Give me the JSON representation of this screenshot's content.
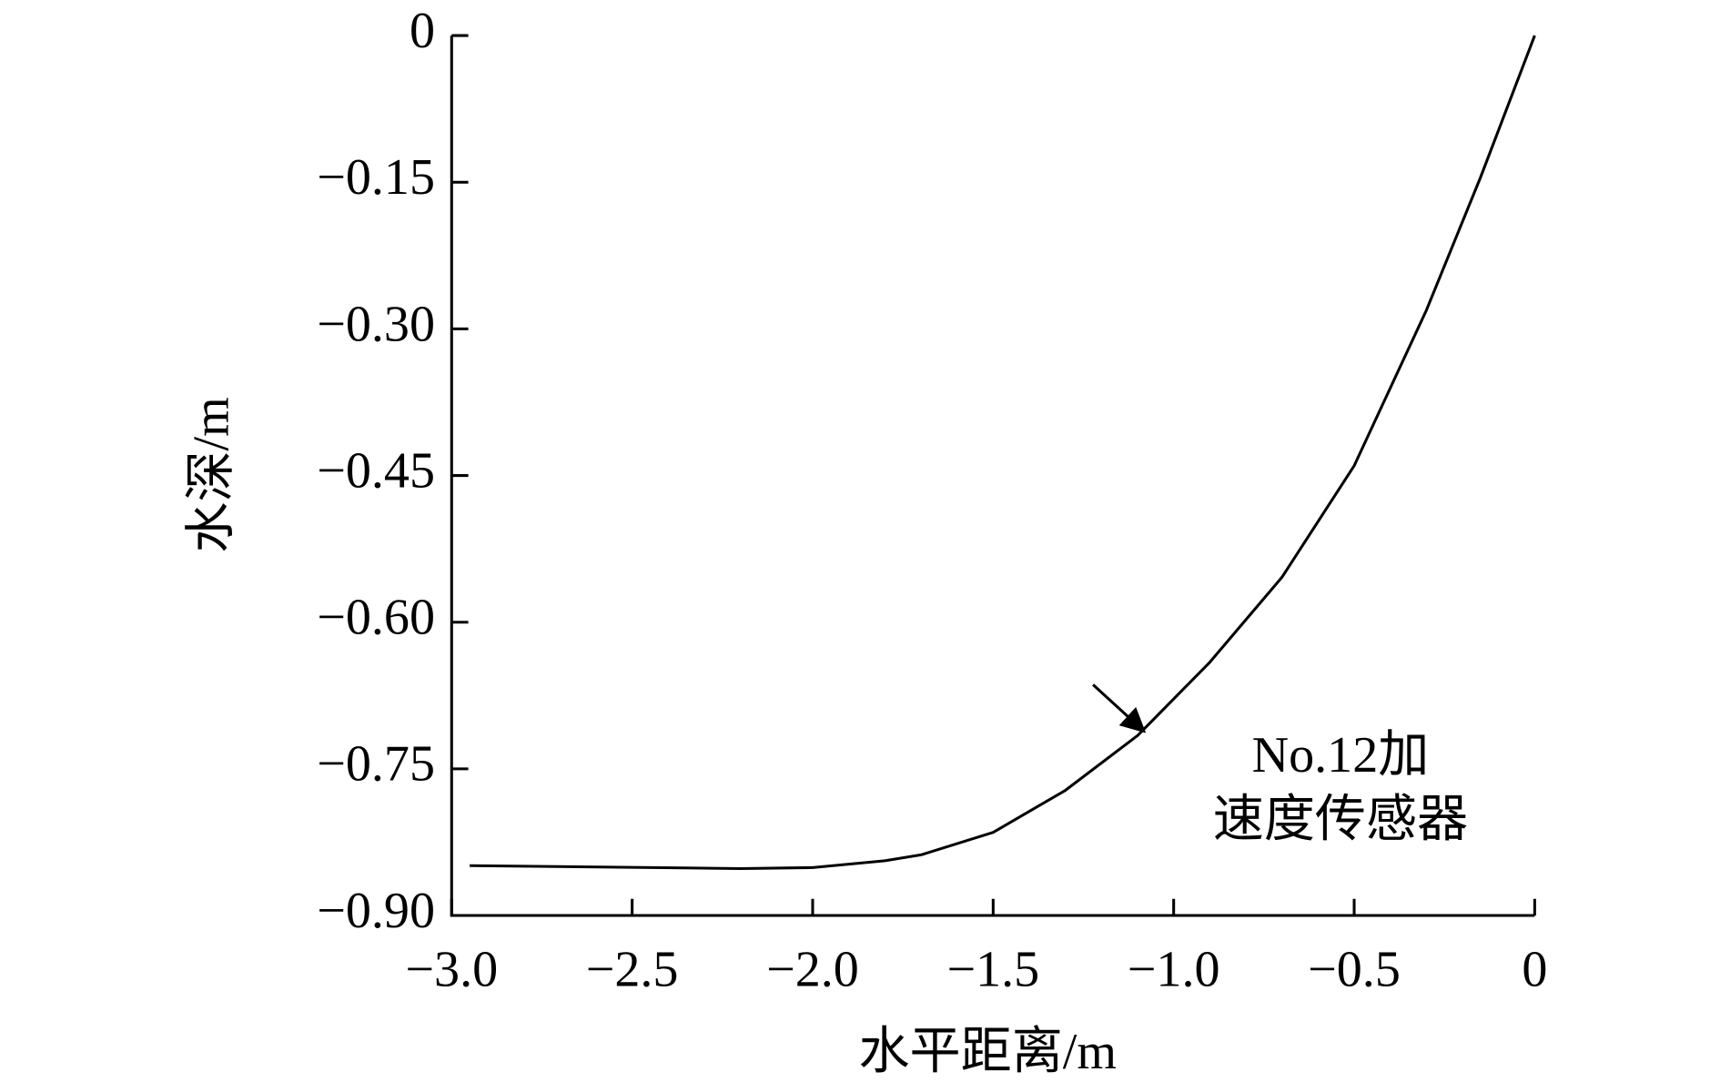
{
  "chart_data": {
    "type": "line",
    "xlabel": "水平距离/m",
    "ylabel": "水深/m",
    "x": [
      -2.95,
      -2.2,
      -2.0,
      -1.8,
      -1.7,
      -1.5,
      -1.3,
      -1.1,
      -0.9,
      -0.7,
      -0.5,
      -0.3,
      -0.15,
      0
    ],
    "series": [
      {
        "color": "#000000",
        "values": [
          -0.849,
          -0.852,
          -0.851,
          -0.844,
          -0.838,
          -0.815,
          -0.772,
          -0.716,
          -0.641,
          -0.554,
          -0.44,
          -0.281,
          -0.145,
          0
        ]
      }
    ],
    "xlim": [
      -3.0,
      0
    ],
    "ylim": [
      -0.9,
      0
    ],
    "xticks": [
      {
        "value": -3.0,
        "label": "−3.0"
      },
      {
        "value": -2.5,
        "label": "−2.5"
      },
      {
        "value": -2.0,
        "label": "−2.0"
      },
      {
        "value": -1.5,
        "label": "−1.5"
      },
      {
        "value": -1.0,
        "label": "−1.0"
      },
      {
        "value": -0.5,
        "label": "−0.5"
      },
      0
    ],
    "yticks": [
      0,
      {
        "value": -0.15,
        "label": "−0.15"
      },
      {
        "value": -0.3,
        "label": "−0.30"
      },
      {
        "value": -0.45,
        "label": "−0.45"
      },
      {
        "value": -0.6,
        "label": "−0.60"
      },
      {
        "value": -0.75,
        "label": "−0.75"
      },
      {
        "value": -0.9,
        "label": "−0.90"
      }
    ],
    "annotation": [
      "No.12加",
      "速度传感器"
    ]
  }
}
